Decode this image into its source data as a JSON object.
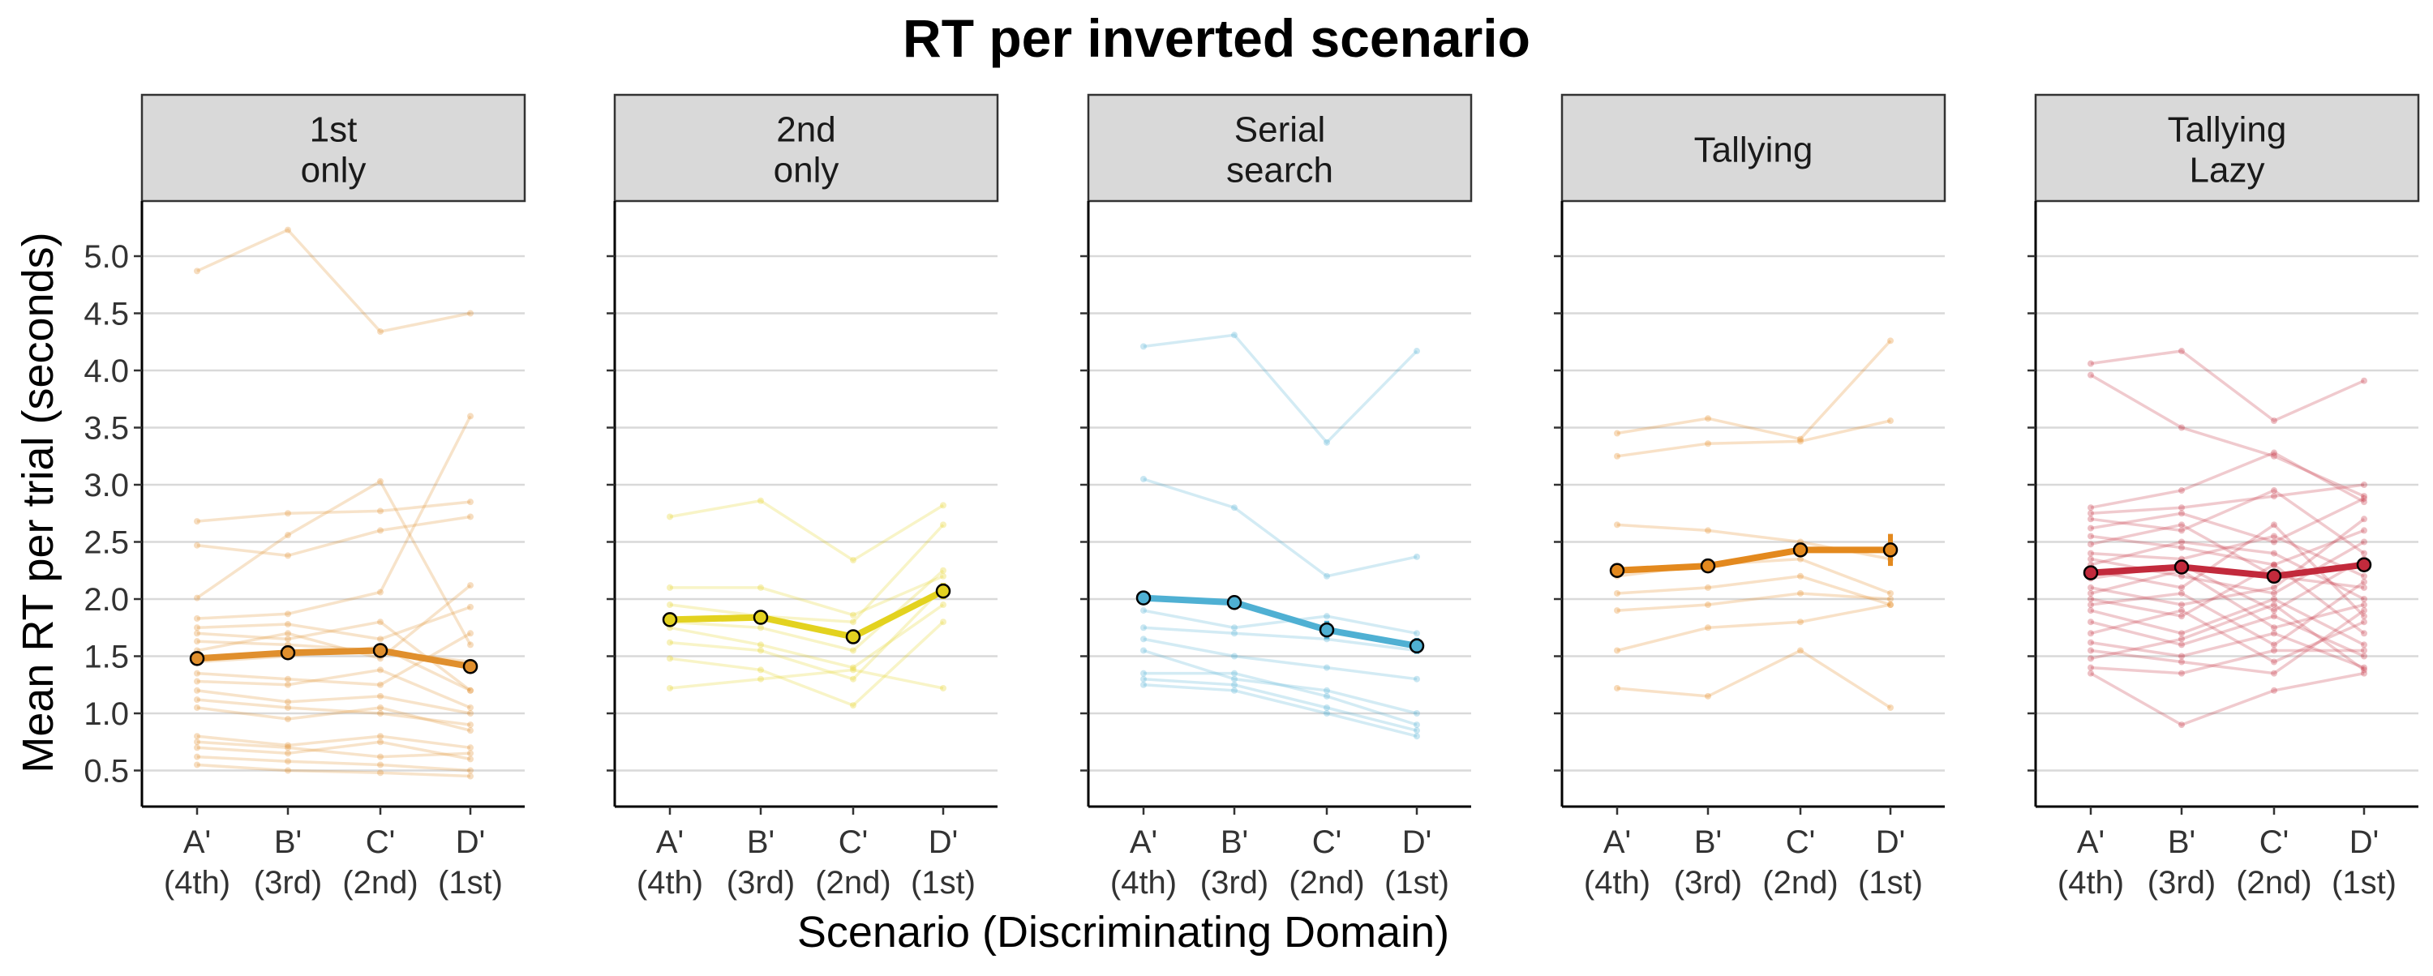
{
  "title": "RT per inverted scenario",
  "xlabel": "Scenario (Discriminating Domain)",
  "ylabel": "Mean RT per trial (seconds)",
  "colors": {
    "1st only": "#e08f2d",
    "2nd only": "#e3d21f",
    "Serial search": "#4fb0d3",
    "Tallying": "#e3891e",
    "Tallying Lazy": "#c22a3c",
    "strip_fill": "#d9d9d9",
    "grid": "#d9d9d9"
  },
  "chart_data": {
    "type": "line",
    "title": "RT per inverted scenario",
    "xlabel": "Scenario (Discriminating Domain)",
    "ylabel": "Mean RT per trial (seconds)",
    "ylim": [
      0.25,
      5.3
    ],
    "yticks": [
      "0.5",
      "1.0",
      "1.5",
      "2.0",
      "2.5",
      "3.0",
      "3.5",
      "4.0",
      "4.5",
      "5.0"
    ],
    "grid": "horizontal",
    "categories": [
      {
        "line1": "A'",
        "line2": "(4th)"
      },
      {
        "line1": "B'",
        "line2": "(3rd)"
      },
      {
        "line1": "C'",
        "line2": "(2nd)"
      },
      {
        "line1": "D'",
        "line2": "(1st)"
      }
    ],
    "facets": [
      {
        "key": "1st only",
        "label": [
          "1st",
          "only"
        ],
        "mean": [
          1.48,
          1.53,
          1.55,
          1.41
        ],
        "error": [
          0.04,
          0.04,
          0.05,
          0.05
        ],
        "participants": [
          [
            4.87,
            5.23,
            4.34,
            4.5
          ],
          [
            2.68,
            2.75,
            2.77,
            2.85
          ],
          [
            2.47,
            2.38,
            2.6,
            2.72
          ],
          [
            2.01,
            2.56,
            3.03,
            1.6
          ],
          [
            1.83,
            1.87,
            2.06,
            3.6
          ],
          [
            1.75,
            1.78,
            1.65,
            1.93
          ],
          [
            1.7,
            1.65,
            1.8,
            1.2
          ],
          [
            1.63,
            1.6,
            1.55,
            1.45
          ],
          [
            1.55,
            1.7,
            1.48,
            2.12
          ],
          [
            1.45,
            1.5,
            1.58,
            1.2
          ],
          [
            1.35,
            1.3,
            1.25,
            1.7
          ],
          [
            1.28,
            1.25,
            1.38,
            1.05
          ],
          [
            1.2,
            1.1,
            1.15,
            1.0
          ],
          [
            1.12,
            1.05,
            1.0,
            0.9
          ],
          [
            1.05,
            0.95,
            1.05,
            0.85
          ],
          [
            0.8,
            0.72,
            0.8,
            0.7
          ],
          [
            0.75,
            0.7,
            0.62,
            0.65
          ],
          [
            0.7,
            0.65,
            0.75,
            0.6
          ],
          [
            0.62,
            0.58,
            0.55,
            0.5
          ],
          [
            0.55,
            0.5,
            0.48,
            0.45
          ]
        ]
      },
      {
        "key": "2nd only",
        "label": [
          "2nd",
          "only"
        ],
        "mean": [
          1.82,
          1.84,
          1.67,
          2.07
        ],
        "error": [
          0.03,
          0.04,
          0.05,
          0.07
        ],
        "participants": [
          [
            2.72,
            2.86,
            2.34,
            2.82
          ],
          [
            2.1,
            2.1,
            1.86,
            2.2
          ],
          [
            1.95,
            1.85,
            1.8,
            2.65
          ],
          [
            1.8,
            1.75,
            1.55,
            2.25
          ],
          [
            1.75,
            1.6,
            1.4,
            1.95
          ],
          [
            1.62,
            1.55,
            1.3,
            2.1
          ],
          [
            1.48,
            1.38,
            1.07,
            1.8
          ],
          [
            1.22,
            1.3,
            1.38,
            1.22
          ]
        ]
      },
      {
        "key": "Serial search",
        "label": [
          "Serial",
          "search"
        ],
        "mean": [
          2.01,
          1.97,
          1.73,
          1.59
        ],
        "error": [
          0.03,
          0.03,
          0.08,
          0.07
        ],
        "participants": [
          [
            4.21,
            4.31,
            3.37,
            4.17
          ],
          [
            3.05,
            2.8,
            2.2,
            2.37
          ],
          [
            1.9,
            1.75,
            1.85,
            1.7
          ],
          [
            1.75,
            1.7,
            1.65,
            1.55
          ],
          [
            1.65,
            1.5,
            1.4,
            1.3
          ],
          [
            1.55,
            1.3,
            1.2,
            1.0
          ],
          [
            1.35,
            1.35,
            1.15,
            0.9
          ],
          [
            1.3,
            1.25,
            1.05,
            0.85
          ],
          [
            1.25,
            1.2,
            1.0,
            0.8
          ]
        ]
      },
      {
        "key": "Tallying",
        "label": [
          "Tallying"
        ],
        "mean": [
          2.25,
          2.29,
          2.43,
          2.43
        ],
        "error": [
          0.04,
          0.03,
          0.06,
          0.14
        ],
        "participants": [
          [
            3.45,
            3.58,
            3.4,
            4.26
          ],
          [
            3.25,
            3.36,
            3.38,
            3.56
          ],
          [
            2.65,
            2.6,
            2.5,
            2.35
          ],
          [
            2.2,
            2.3,
            2.35,
            2.05
          ],
          [
            2.05,
            2.1,
            2.2,
            1.95
          ],
          [
            1.9,
            1.95,
            2.05,
            2.0
          ],
          [
            1.55,
            1.75,
            1.8,
            1.95
          ],
          [
            1.22,
            1.15,
            1.55,
            1.05
          ]
        ]
      },
      {
        "key": "Tallying Lazy",
        "label": [
          "Tallying",
          "Lazy"
        ],
        "mean": [
          2.23,
          2.28,
          2.2,
          2.3
        ],
        "error": [
          0.03,
          0.03,
          0.03,
          0.04
        ],
        "participants": [
          [
            4.06,
            4.17,
            3.56,
            3.91
          ],
          [
            3.96,
            3.5,
            3.25,
            2.9
          ],
          [
            2.8,
            2.95,
            3.28,
            2.85
          ],
          [
            2.75,
            2.8,
            2.9,
            3.0
          ],
          [
            2.7,
            2.6,
            2.95,
            2.4
          ],
          [
            2.62,
            2.75,
            2.5,
            2.88
          ],
          [
            2.55,
            2.45,
            2.3,
            2.6
          ],
          [
            2.48,
            2.65,
            2.2,
            2.1
          ],
          [
            2.4,
            2.35,
            2.55,
            2.2
          ],
          [
            2.35,
            2.2,
            2.05,
            2.5
          ],
          [
            2.3,
            2.5,
            2.4,
            2.0
          ],
          [
            2.25,
            2.1,
            2.65,
            1.85
          ],
          [
            2.18,
            2.3,
            1.9,
            2.35
          ],
          [
            2.1,
            1.95,
            2.1,
            2.7
          ],
          [
            2.05,
            2.25,
            1.75,
            1.95
          ],
          [
            2.0,
            1.85,
            2.3,
            1.7
          ],
          [
            1.95,
            2.05,
            1.6,
            2.15
          ],
          [
            1.9,
            1.7,
            2.0,
            1.6
          ],
          [
            1.8,
            1.6,
            1.85,
            1.5
          ],
          [
            1.7,
            1.9,
            1.45,
            1.8
          ],
          [
            1.62,
            1.5,
            1.7,
            1.4
          ],
          [
            1.55,
            1.45,
            1.35,
            1.9
          ],
          [
            1.48,
            1.65,
            1.95,
            1.38
          ],
          [
            1.4,
            1.35,
            1.55,
            1.55
          ],
          [
            1.35,
            0.9,
            1.2,
            1.35
          ]
        ]
      }
    ]
  }
}
